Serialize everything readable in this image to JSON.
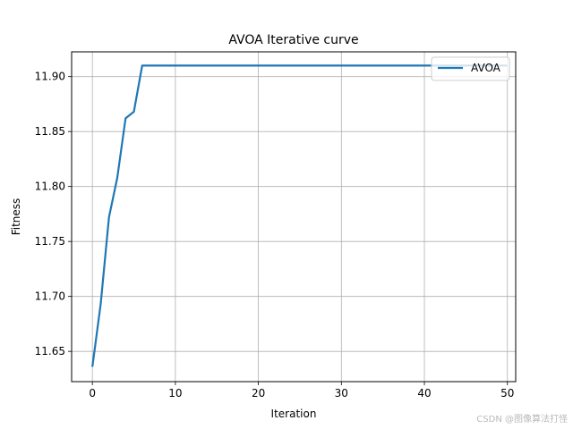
{
  "chart_data": {
    "type": "line",
    "title": "AVOA Iterative curve",
    "xlabel": "Iteration",
    "ylabel": "Fitness",
    "xlim": [
      -2.5,
      51.0
    ],
    "ylim": [
      11.6225,
      11.9225
    ],
    "xticks": [
      0,
      10,
      20,
      30,
      40,
      50
    ],
    "xtick_labels": [
      "0",
      "10",
      "20",
      "30",
      "40",
      "50"
    ],
    "yticks": [
      11.65,
      11.7,
      11.75,
      11.8,
      11.85,
      11.9
    ],
    "ytick_labels": [
      "11.65",
      "11.70",
      "11.75",
      "11.80",
      "11.85",
      "11.90"
    ],
    "grid": true,
    "legend_position": "top-right",
    "series": [
      {
        "name": "AVOA",
        "color": "#1f77b4",
        "x": [
          0,
          1,
          2,
          3,
          4,
          5,
          6,
          7,
          8,
          9,
          10,
          11,
          12,
          13,
          14,
          15,
          16,
          17,
          18,
          19,
          20,
          21,
          22,
          23,
          24,
          25,
          26,
          27,
          28,
          29,
          30,
          31,
          32,
          33,
          34,
          35,
          36,
          37,
          38,
          39,
          40,
          41,
          42,
          43,
          44,
          45,
          46,
          47,
          48,
          49,
          50
        ],
        "y": [
          11.636,
          11.693,
          11.772,
          11.808,
          11.862,
          11.868,
          11.91,
          11.91,
          11.91,
          11.91,
          11.91,
          11.91,
          11.91,
          11.91,
          11.91,
          11.91,
          11.91,
          11.91,
          11.91,
          11.91,
          11.91,
          11.91,
          11.91,
          11.91,
          11.91,
          11.91,
          11.91,
          11.91,
          11.91,
          11.91,
          11.91,
          11.91,
          11.91,
          11.91,
          11.91,
          11.91,
          11.91,
          11.91,
          11.91,
          11.91,
          11.91,
          11.91,
          11.91,
          11.91,
          11.91,
          11.91,
          11.91,
          11.91,
          11.91,
          11.91,
          11.91
        ]
      }
    ]
  },
  "watermark": "CSDN @图像算法打怪"
}
